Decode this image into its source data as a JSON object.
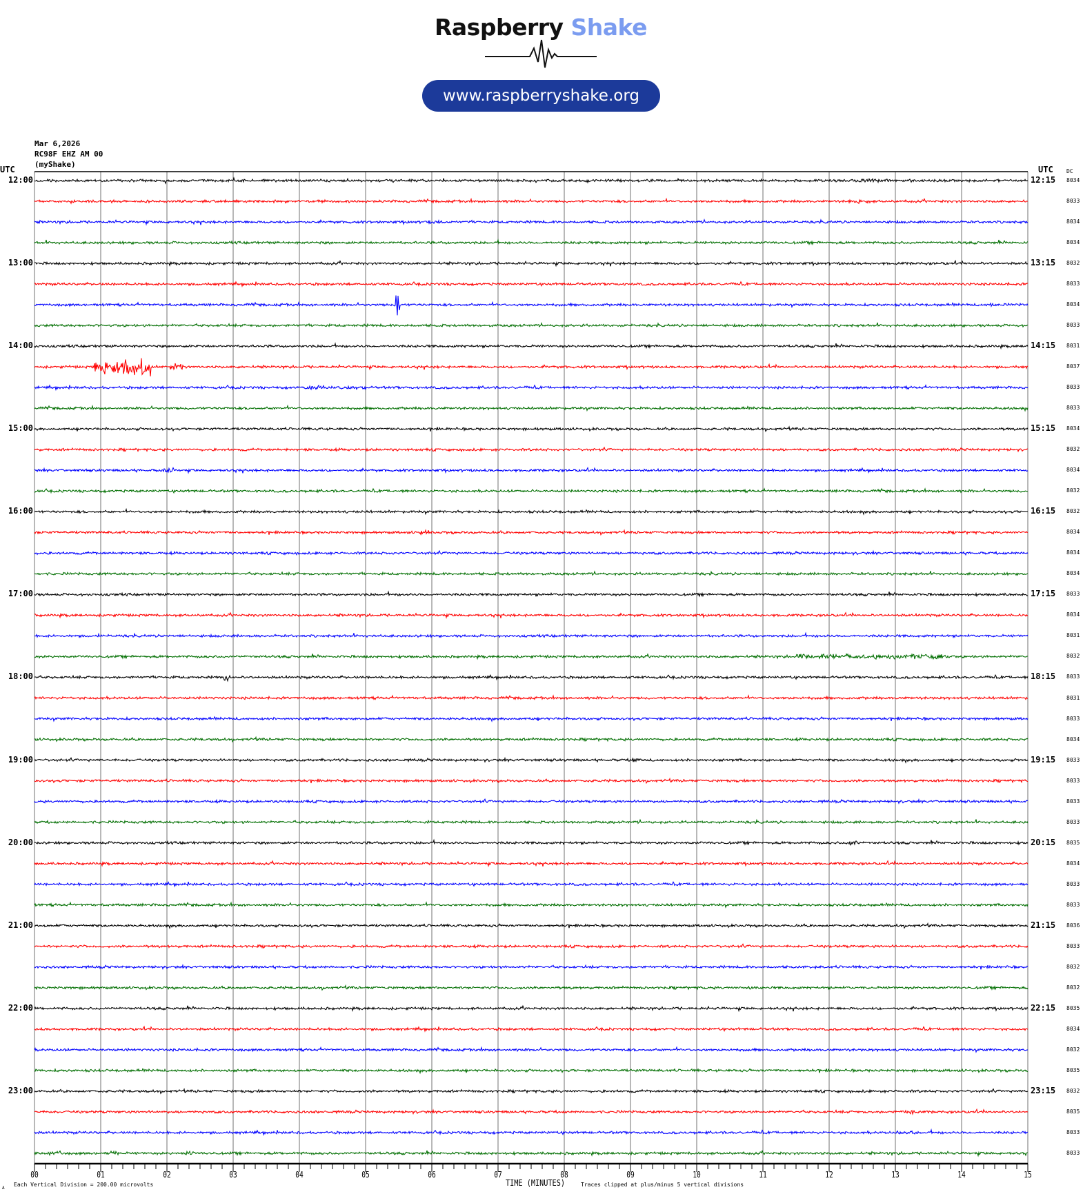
{
  "logo": {
    "word1": "Raspberry",
    "word2": "Shake",
    "url": "www.raspberryshake.org"
  },
  "header": {
    "date": "Mar 6,2026",
    "station": "RC98F EHZ AM 00",
    "network": "(myShake)"
  },
  "left_axis_label": "UTC",
  "right_axis_label": "UTC",
  "dc_label": "DC",
  "left_times": [
    "12:00",
    "13:00",
    "14:00",
    "15:00",
    "16:00",
    "17:00",
    "18:00",
    "19:00",
    "20:00",
    "21:00",
    "22:00",
    "23:00"
  ],
  "right_times": [
    "12:15",
    "13:15",
    "14:15",
    "15:15",
    "16:15",
    "17:15",
    "18:15",
    "19:15",
    "20:15",
    "21:15",
    "22:15",
    "23:15"
  ],
  "dc_values": [
    "8034",
    "8033",
    "8034",
    "8034",
    "8032",
    "8033",
    "8034",
    "8033",
    "8031",
    "8037",
    "8033",
    "8033",
    "8034",
    "8032",
    "8034",
    "8032",
    "8032",
    "8034",
    "8034",
    "8034",
    "8033",
    "8034",
    "8031",
    "8032",
    "8033",
    "8031",
    "8033",
    "8034",
    "8033",
    "8033",
    "8033",
    "8033",
    "8035",
    "8034",
    "8033",
    "8033",
    "8036",
    "8033",
    "8032",
    "8032",
    "8035",
    "8034",
    "8032",
    "8035",
    "8032",
    "8035",
    "8033",
    "8033"
  ],
  "footer": {
    "scale": "Each Vertical Division =  200.00 microvolts",
    "xlabel": "TIME (MINUTES)",
    "clip_note": "Traces clipped at plus/minus 5 vertical divisions",
    "corner_mark": "A"
  },
  "chart_data": {
    "type": "line",
    "title": "RC98F EHZ AM 00 helicorder",
    "xlabel": "TIME (MINUTES)",
    "xlim": [
      0,
      15
    ],
    "x_ticks": [
      "00",
      "01",
      "02",
      "03",
      "04",
      "05",
      "06",
      "07",
      "08",
      "09",
      "10",
      "11",
      "12",
      "13",
      "14",
      "15"
    ],
    "trace_count": 48,
    "trace_minutes": 15,
    "trace_colors": [
      "#000000",
      "#ff0000",
      "#0000ff",
      "#006e00"
    ],
    "noise_level": 1.4,
    "events": [
      {
        "trace": 0,
        "start_min": 12.4,
        "end_min": 12.9,
        "amp": 3
      },
      {
        "trace": 0,
        "start_min": 0.05,
        "end_min": 0.3,
        "amp": 2
      },
      {
        "trace": 1,
        "start_min": 12.3,
        "end_min": 12.6,
        "amp": 4
      },
      {
        "trace": 2,
        "start_min": 5.9,
        "end_min": 6.3,
        "amp": 3
      },
      {
        "trace": 6,
        "start_min": 5.45,
        "end_min": 5.52,
        "amp": 20
      },
      {
        "trace": 6,
        "start_min": 14.4,
        "end_min": 14.6,
        "amp": 3
      },
      {
        "trace": 9,
        "start_min": 0.9,
        "end_min": 1.75,
        "amp": 14
      },
      {
        "trace": 9,
        "start_min": 2.05,
        "end_min": 2.25,
        "amp": 6
      },
      {
        "trace": 10,
        "start_min": 4.1,
        "end_min": 5.0,
        "amp": 3
      },
      {
        "trace": 14,
        "start_min": 1.9,
        "end_min": 2.1,
        "amp": 4
      },
      {
        "trace": 17,
        "start_min": 5.8,
        "end_min": 5.95,
        "amp": 4
      },
      {
        "trace": 22,
        "start_min": 0.95,
        "end_min": 1.0,
        "amp": 3
      },
      {
        "trace": 23,
        "start_min": 11.5,
        "end_min": 13.8,
        "amp": 4
      },
      {
        "trace": 24,
        "start_min": 2.85,
        "end_min": 2.95,
        "amp": 7
      },
      {
        "trace": 28,
        "start_min": 9.0,
        "end_min": 9.2,
        "amp": 3
      },
      {
        "trace": 32,
        "start_min": 12.3,
        "end_min": 12.45,
        "amp": 5
      },
      {
        "trace": 38,
        "start_min": 11.5,
        "end_min": 11.8,
        "amp": 2
      },
      {
        "trace": 39,
        "start_min": 10.7,
        "end_min": 10.9,
        "amp": 3
      },
      {
        "trace": 45,
        "start_min": 13.1,
        "end_min": 13.3,
        "amp": 3
      },
      {
        "trace": 46,
        "start_min": 13.0,
        "end_min": 13.3,
        "amp": 3
      },
      {
        "trace": 47,
        "start_min": 0.2,
        "end_min": 0.4,
        "amp": 4
      },
      {
        "trace": 47,
        "start_min": 1.15,
        "end_min": 1.3,
        "amp": 4
      },
      {
        "trace": 47,
        "start_min": 2.25,
        "end_min": 2.4,
        "amp": 4
      }
    ]
  }
}
